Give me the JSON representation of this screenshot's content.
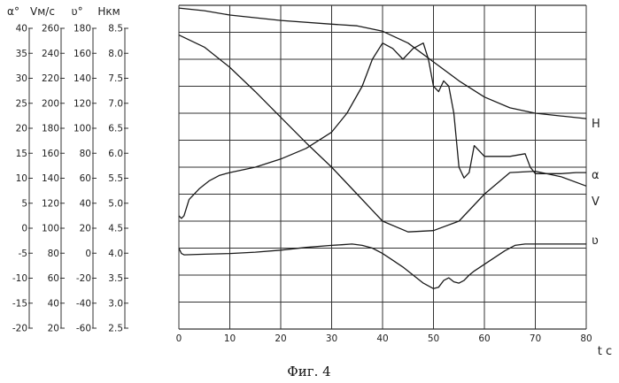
{
  "chart_data": {
    "type": "line",
    "caption": "Фиг. 4",
    "xlabel": "t c",
    "x_ticks": [
      "0",
      "10",
      "20",
      "30",
      "40",
      "50",
      "60",
      "70",
      "80"
    ],
    "xlim": [
      0,
      80
    ],
    "grid": true,
    "scales": [
      {
        "header": "α°",
        "series": "α",
        "range": [
          -20,
          40
        ],
        "ticks": [
          "40",
          "35",
          "30",
          "25",
          "20",
          "15",
          "10",
          "5",
          "0",
          "-5",
          "-10",
          "-15",
          "-20"
        ]
      },
      {
        "header": "Vм/c",
        "series": "V",
        "range": [
          20,
          260
        ],
        "ticks": [
          "260",
          "240",
          "220",
          "200",
          "180",
          "160",
          "140",
          "120",
          "100",
          "80",
          "60",
          "40",
          "20"
        ]
      },
      {
        "header": "ʋ°",
        "series": "ʋ",
        "range": [
          -60,
          180
        ],
        "ticks": [
          "180",
          "160",
          "140",
          "120",
          "100",
          "80",
          "60",
          "40",
          "20",
          "0",
          "-20",
          "-40",
          "-60"
        ]
      },
      {
        "header": "Hкм",
        "series": "H",
        "range": [
          2.5,
          8.5
        ],
        "ticks": [
          "8.5",
          "8.0",
          "7.5",
          "7.0",
          "6.5",
          "6.0",
          "5.5",
          "5.0",
          "4.5",
          "4.0",
          "3.5",
          "3.0",
          "2.5"
        ]
      }
    ],
    "series": [
      {
        "name": "H",
        "scale": 3,
        "x": [
          0,
          5,
          10,
          20,
          30,
          35,
          40,
          45,
          50,
          55,
          60,
          65,
          70,
          75,
          80
        ],
        "y": [
          8.45,
          8.4,
          8.32,
          8.22,
          8.15,
          8.12,
          8.02,
          7.8,
          7.45,
          7.1,
          6.8,
          6.6,
          6.5,
          6.45,
          6.4
        ]
      },
      {
        "name": "α",
        "scale": 0,
        "x": [
          0,
          0.5,
          1,
          2,
          4,
          6,
          8,
          10,
          15,
          20,
          25,
          30,
          33,
          36,
          38,
          40,
          42,
          44,
          46,
          48,
          49,
          50,
          51,
          52,
          53,
          54,
          55,
          56,
          57,
          58,
          59,
          60,
          62,
          65,
          68,
          69,
          70,
          72,
          75,
          78,
          80
        ],
        "y": [
          1,
          0.5,
          1,
          4,
          6,
          7.5,
          8.5,
          9,
          10,
          11.5,
          13.5,
          16.5,
          20,
          25,
          30,
          33,
          32,
          30,
          32,
          33,
          30,
          25,
          24,
          26,
          25,
          20,
          10,
          8,
          9,
          14,
          13,
          12,
          12,
          12,
          12.5,
          10,
          8.8,
          8.8,
          8.8,
          9,
          9
        ]
      },
      {
        "name": "V",
        "scale": 1,
        "x": [
          0,
          5,
          10,
          15,
          20,
          25,
          30,
          35,
          38,
          40,
          45,
          50,
          55,
          60,
          65,
          70,
          75,
          80
        ],
        "y": [
          238,
          229,
          214,
          196,
          177,
          158,
          140,
          120,
          108,
          100,
          92,
          93,
          100,
          120,
          136,
          137,
          133,
          126
        ]
      },
      {
        "name": "ʋ",
        "scale": 2,
        "x": [
          0,
          0.5,
          1,
          5,
          10,
          15,
          20,
          25,
          30,
          32,
          34,
          36,
          38,
          40,
          42,
          44,
          46,
          48,
          50,
          51,
          52,
          53,
          54,
          55,
          56,
          57,
          58,
          60,
          62,
          64,
          66,
          68,
          70,
          75,
          80
        ],
        "y": [
          0,
          -4,
          -5,
          -4.5,
          -4,
          -3,
          -1.5,
          0.5,
          2,
          2.5,
          3,
          2,
          0,
          -4,
          -9,
          -14,
          -20,
          -26,
          -30,
          -29,
          -24,
          -22,
          -25,
          -26,
          -24,
          -20,
          -17,
          -12,
          -7,
          -2,
          2,
          3,
          3,
          3,
          3
        ]
      }
    ]
  }
}
